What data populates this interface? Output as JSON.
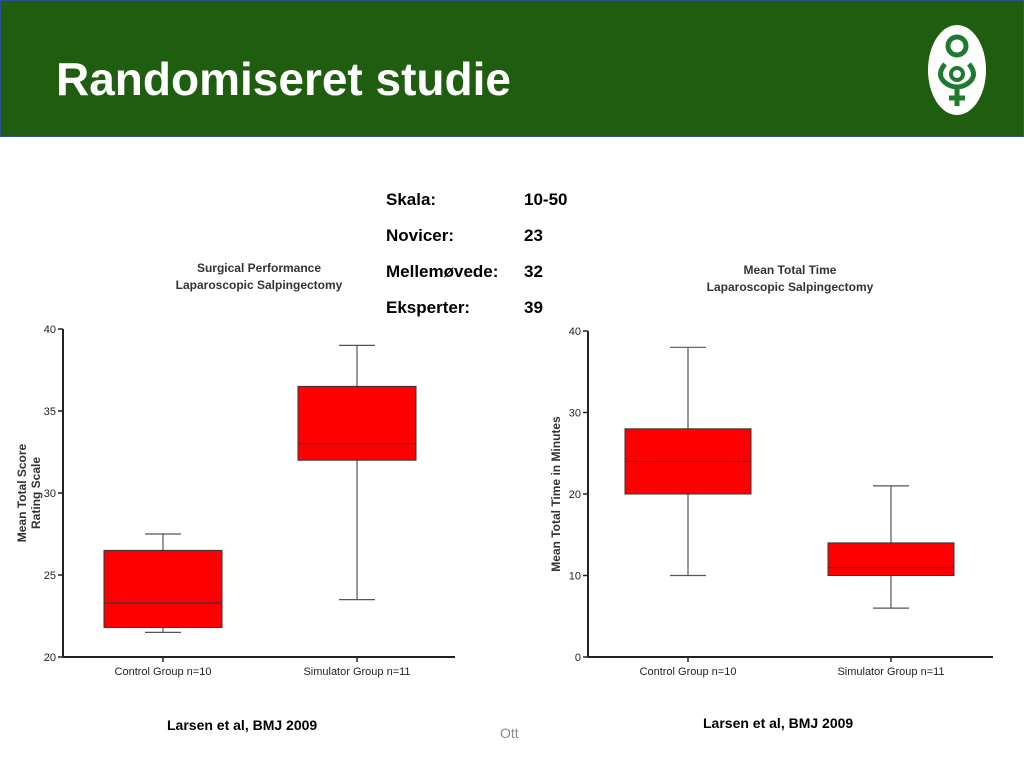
{
  "slide": {
    "title": "Randomiseret studie",
    "footer": "Ott",
    "logo_icon": "fetus-logo-icon",
    "header_color": "#1e5e0e"
  },
  "scale": {
    "rows": [
      {
        "label": "Skala:",
        "value": "10-50"
      },
      {
        "label": "Novicer:",
        "value": "23"
      },
      {
        "label": "Mellemøvede:",
        "value": "32"
      },
      {
        "label": "Eksperter:",
        "value": "39"
      }
    ]
  },
  "chart_data": [
    {
      "type": "box",
      "title": "Surgical Performance",
      "subtitle": "Laparoscopic Salpingectomy",
      "ylabel": "Mean Total Score",
      "ylabel2": "Rating Scale",
      "ylim": [
        20,
        40
      ],
      "yticks": [
        20,
        25,
        30,
        35,
        40
      ],
      "categories": [
        "Control Group n=10",
        "Simulator Group n=11"
      ],
      "boxes": [
        {
          "min": 21.5,
          "q1": 21.8,
          "median": 23.3,
          "q3": 26.5,
          "max": 27.5
        },
        {
          "min": 23.5,
          "q1": 32,
          "median": 33,
          "q3": 36.5,
          "max": 39
        }
      ],
      "color": "#ff0000",
      "citation": "Larsen et al, BMJ 2009"
    },
    {
      "type": "box",
      "title": "Mean Total Time",
      "subtitle": "Laparoscopic Salpingectomy",
      "ylabel": "Mean Total Time in Minutes",
      "ylabel2": "",
      "ylim": [
        0,
        40
      ],
      "yticks": [
        0,
        10,
        20,
        30,
        40
      ],
      "categories": [
        "Control Group n=10",
        "Simulator Group n=11"
      ],
      "boxes": [
        {
          "min": 10,
          "q1": 20,
          "median": 24,
          "q3": 28,
          "max": 38
        },
        {
          "min": 6,
          "q1": 10,
          "median": 11,
          "q3": 14,
          "max": 21
        }
      ],
      "color": "#ff0000",
      "citation": "Larsen et al, BMJ 2009"
    }
  ]
}
